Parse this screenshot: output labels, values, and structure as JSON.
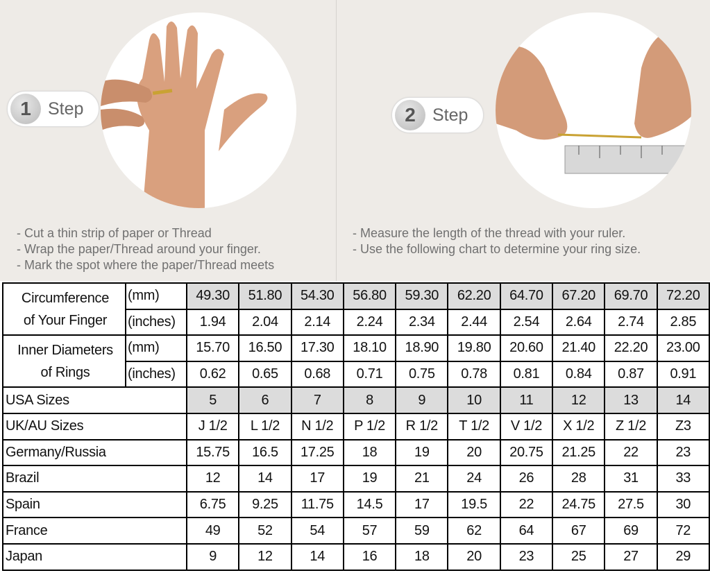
{
  "steps": [
    {
      "number": "1",
      "label": "Step",
      "instructions": [
        "- Cut a thin strip of paper or Thread",
        "- Wrap the paper/Thread around your finger.",
        "- Mark the spot where the paper/Thread meets"
      ]
    },
    {
      "number": "2",
      "label": "Step",
      "instructions": [
        "- Measure the length of the thread with your ruler.",
        "- Use the following chart to determine your ring size."
      ]
    }
  ],
  "colors": {
    "background": "#eeebe7",
    "highlight_cells": "#dcdcdc",
    "text": "#707070",
    "border": "#000000"
  },
  "table": {
    "groups": [
      {
        "label_lines": [
          "Circumference",
          "of Your Finger"
        ],
        "rows": [
          {
            "unit": "(mm)",
            "values": [
              "49.30",
              "51.80",
              "54.30",
              "56.80",
              "59.30",
              "62.20",
              "64.70",
              "67.20",
              "69.70",
              "72.20"
            ],
            "highlight": true
          },
          {
            "unit": "(inches)",
            "values": [
              "1.94",
              "2.04",
              "2.14",
              "2.24",
              "2.34",
              "2.44",
              "2.54",
              "2.64",
              "2.74",
              "2.85"
            ],
            "highlight": false
          }
        ]
      },
      {
        "label_lines": [
          "Inner Diameters",
          "of Rings"
        ],
        "rows": [
          {
            "unit": "(mm)",
            "values": [
              "15.70",
              "16.50",
              "17.30",
              "18.10",
              "18.90",
              "19.80",
              "20.60",
              "21.40",
              "22.20",
              "23.00"
            ],
            "highlight": false
          },
          {
            "unit": "(inches)",
            "values": [
              "0.62",
              "0.65",
              "0.68",
              "0.71",
              "0.75",
              "0.78",
              "0.81",
              "0.84",
              "0.87",
              "0.91"
            ],
            "highlight": false
          }
        ]
      }
    ],
    "rows": [
      {
        "label": "USA Sizes",
        "values": [
          "5",
          "6",
          "7",
          "8",
          "9",
          "10",
          "11",
          "12",
          "13",
          "14"
        ],
        "highlight": true
      },
      {
        "label": "UK/AU Sizes",
        "values": [
          "J 1/2",
          "L 1/2",
          "N 1/2",
          "P 1/2",
          "R 1/2",
          "T 1/2",
          "V 1/2",
          "X 1/2",
          "Z 1/2",
          "Z3"
        ],
        "highlight": false
      },
      {
        "label": "Germany/Russia",
        "values": [
          "15.75",
          "16.5",
          "17.25",
          "18",
          "19",
          "20",
          "20.75",
          "21.25",
          "22",
          "23"
        ],
        "highlight": false
      },
      {
        "label": "Brazil",
        "values": [
          "12",
          "14",
          "17",
          "19",
          "21",
          "24",
          "26",
          "28",
          "31",
          "33"
        ],
        "highlight": false
      },
      {
        "label": "Spain",
        "values": [
          "6.75",
          "9.25",
          "11.75",
          "14.5",
          "17",
          "19.5",
          "22",
          "24.75",
          "27.5",
          "30"
        ],
        "highlight": false
      },
      {
        "label": "France",
        "values": [
          "49",
          "52",
          "54",
          "57",
          "59",
          "62",
          "64",
          "67",
          "69",
          "72"
        ],
        "highlight": false
      },
      {
        "label": "Japan",
        "values": [
          "9",
          "12",
          "14",
          "16",
          "18",
          "20",
          "23",
          "25",
          "27",
          "29"
        ],
        "highlight": false
      }
    ]
  }
}
